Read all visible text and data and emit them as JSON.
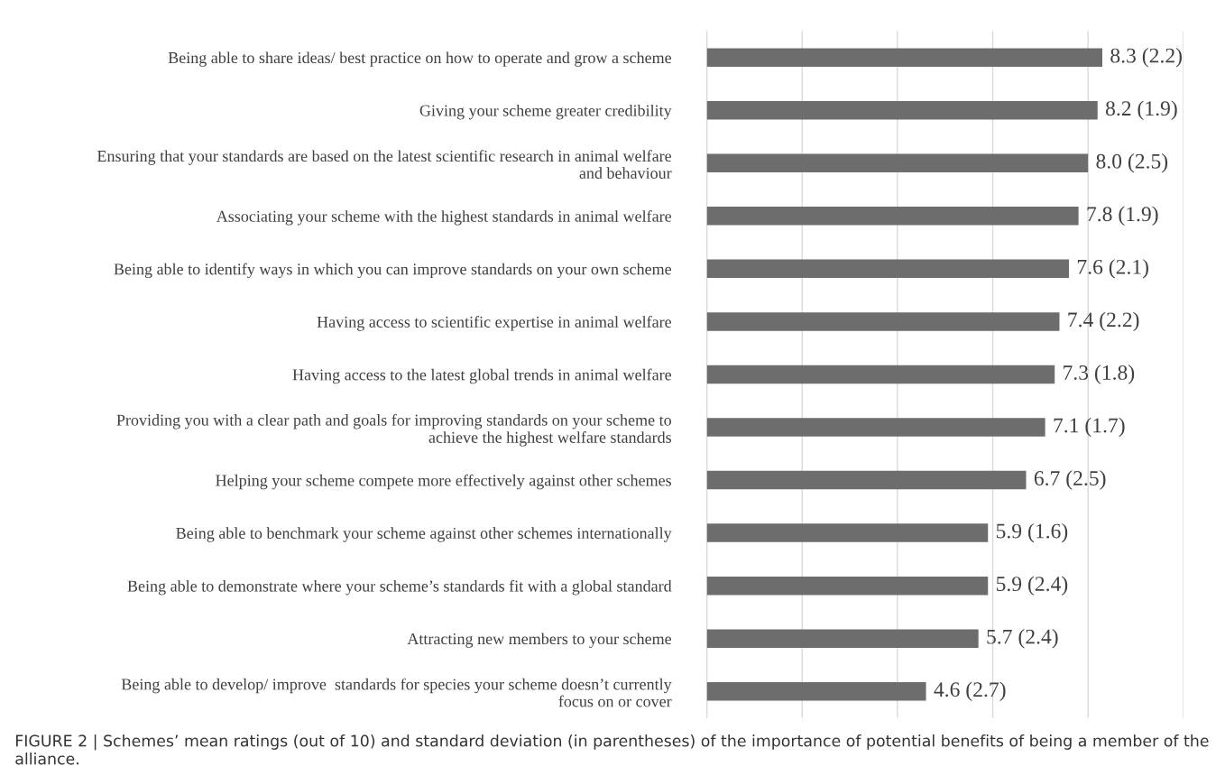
{
  "chart_data": {
    "type": "bar",
    "orientation": "horizontal",
    "categories": [
      "Being able to share ideas/ best practice on how to operate and grow a scheme",
      "Giving your scheme greater credibility",
      "Ensuring that your standards are based on the latest scientific research in animal welfare\nand behaviour",
      "Associating your scheme with the highest standards in animal welfare",
      "Being able to identify ways in which you can improve standards on your own scheme",
      "Having access to scientific expertise in animal welfare",
      "Having access to the latest global trends in animal welfare",
      "Providing you with a clear path and goals for improving standards on your scheme to\nachieve the highest welfare standards",
      "Helping your scheme compete more effectively against other schemes",
      "Being able to benchmark your scheme against other schemes internationally",
      "Being able to demonstrate where your scheme’s standards fit with a global standard",
      "Attracting new members to your scheme",
      "Being able to develop/ improve  standards for species your scheme doesn’t currently\nfocus on or cover"
    ],
    "values": [
      8.3,
      8.2,
      8.0,
      7.8,
      7.6,
      7.4,
      7.3,
      7.1,
      6.7,
      5.9,
      5.9,
      5.7,
      4.6
    ],
    "value_labels": [
      "8.3 (2.2)",
      "8.2 (1.9)",
      "8.0 (2.5)",
      "7.8 (1.9)",
      "7.6 (2.1)",
      "7.4 (2.2)",
      "7.3 (1.8)",
      "7.1 (1.7)",
      "6.7 (2.5)",
      "5.9 (1.6)",
      "5.9 (2.4)",
      "5.7 (2.4)",
      "4.6 (2.7)"
    ],
    "color": "#6d6d6d",
    "xlim": [
      0,
      10
    ],
    "xticks": [
      {
        "value": 0,
        "label": null
      },
      {
        "value": 2,
        "label": null
      },
      {
        "value": 4,
        "label": null
      },
      {
        "value": 6,
        "label": null
      },
      {
        "value": 8,
        "label": null
      },
      {
        "value": 10,
        "label": null
      }
    ],
    "tick_labels": "y",
    "grid": "x",
    "legend": false,
    "annotations": [
      "FIGURE 2 | Schemes’ mean ratings (out of 10) and standard deviation (in parentheses) of the importance of potential benefits of being a member of the alliance."
    ]
  }
}
